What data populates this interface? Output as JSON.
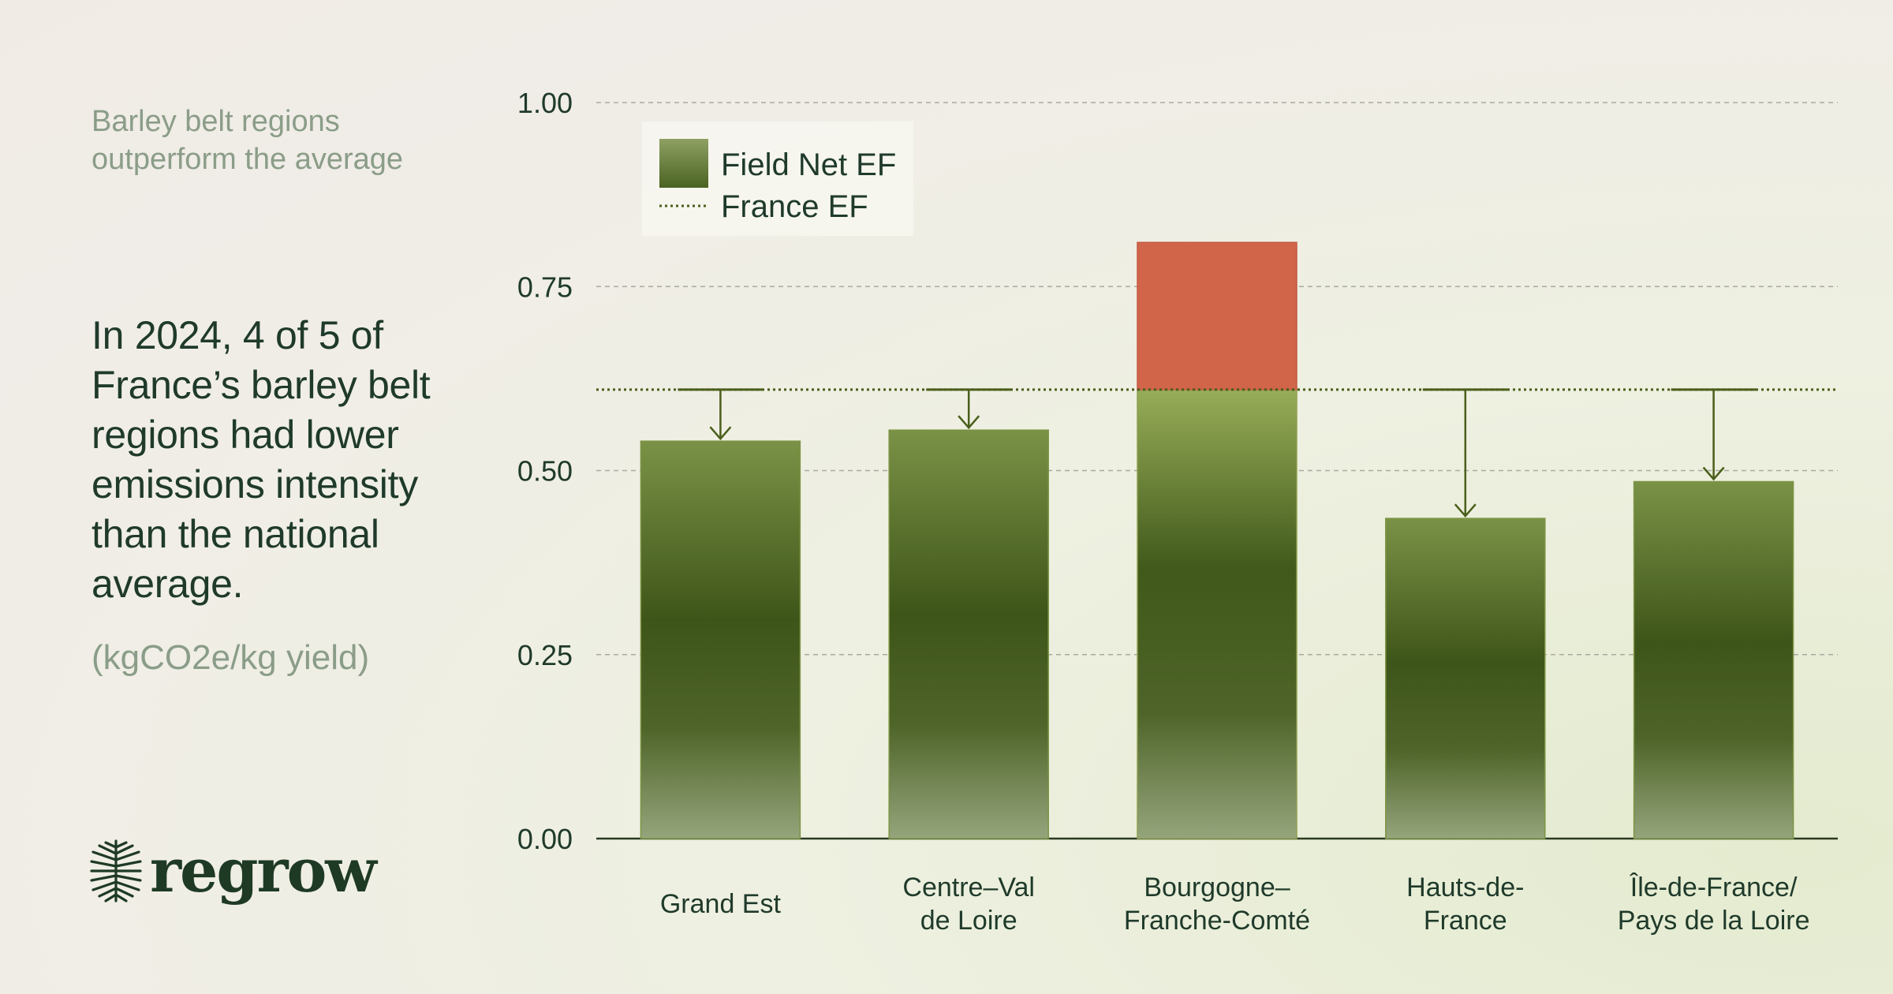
{
  "kicker": "Barley belt regions outperform the average",
  "headline": "In 2024, 4 of 5 of France’s barley belt regions had lower emissions intensity than the national average.",
  "unit_label": "(kgCO2e/kg yield)",
  "brand": {
    "name": "regrow",
    "icon": "tree-roots-icon"
  },
  "colors": {
    "bar_dark": "#3d5418",
    "bar_light": "#93a677",
    "bar_excess": "#d0654a",
    "reference_line": "#4a5e1a",
    "text_dark": "#1f3a2a",
    "text_muted": "#8a9d88"
  },
  "chart_data": {
    "type": "bar",
    "categories": [
      "Grand Est",
      "Centre–Val de Loire",
      "Bourgogne–Franche-Comté",
      "Hauts-de-France",
      "Île-de-France/ Pays de la Loire"
    ],
    "category_lines": [
      [
        "Grand Est"
      ],
      [
        "Centre–Val",
        "de Loire"
      ],
      [
        "Bourgogne–",
        "Franche-Comté"
      ],
      [
        "Hauts-de-",
        "France"
      ],
      [
        "Île-de-France/",
        "Pays de la Loire"
      ]
    ],
    "series": [
      {
        "name": "Field Net EF",
        "values": [
          0.54,
          0.555,
          0.81,
          0.435,
          0.485
        ]
      }
    ],
    "reference": {
      "name": "France EF",
      "value": 0.61
    },
    "ylim": [
      0,
      1.0
    ],
    "yticks": [
      0.0,
      0.25,
      0.5,
      0.75,
      1.0
    ],
    "ytick_labels": [
      "0.00",
      "0.25",
      "0.50",
      "0.75",
      "1.00"
    ],
    "grid": true,
    "legend": "top-left",
    "xlabel": "",
    "ylabel": ""
  }
}
